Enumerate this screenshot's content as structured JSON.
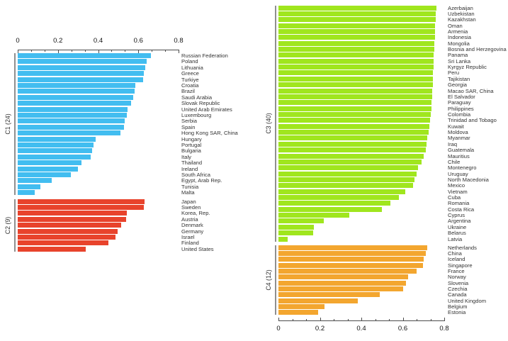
{
  "chart_data": [
    {
      "id": "left-panel",
      "type": "bar",
      "orientation": "horizontal",
      "value_axis": {
        "position": "top",
        "min": 0,
        "max": 0.8,
        "tick_values": [
          0,
          0.2,
          0.4,
          0.6,
          0.8
        ],
        "tick_labels": [
          "0",
          "0.2",
          "0.4",
          "0.6",
          "0.8"
        ],
        "grid": false
      },
      "groups": [
        {
          "label": "C1 (24)",
          "color": "#42BDF0",
          "items": [
            {
              "name": "Russian Federation",
              "value": 0.661
            },
            {
              "name": "Poland",
              "value": 0.643
            },
            {
              "name": "Lithuania",
              "value": 0.634
            },
            {
              "name": "Greece",
              "value": 0.629
            },
            {
              "name": "Turkiye",
              "value": 0.625
            },
            {
              "name": "Croatia",
              "value": 0.586
            },
            {
              "name": "Brazil",
              "value": 0.582
            },
            {
              "name": "Saudi Arabia",
              "value": 0.576
            },
            {
              "name": "Slovak Republic",
              "value": 0.563
            },
            {
              "name": "United Arab Emirates",
              "value": 0.546
            },
            {
              "name": "Luxembourg",
              "value": 0.543
            },
            {
              "name": "Serbia",
              "value": 0.532
            },
            {
              "name": "Spain",
              "value": 0.528
            },
            {
              "name": "Hong Kong SAR, China",
              "value": 0.51
            },
            {
              "name": "Hungary",
              "value": 0.388
            },
            {
              "name": "Portugal",
              "value": 0.378
            },
            {
              "name": "Bulgaria",
              "value": 0.369
            },
            {
              "name": "Italy",
              "value": 0.364
            },
            {
              "name": "Thailand",
              "value": 0.317
            },
            {
              "name": "Ireland",
              "value": 0.3
            },
            {
              "name": "South Africa",
              "value": 0.264
            },
            {
              "name": "Egypt, Arab Rep.",
              "value": 0.168
            },
            {
              "name": "Tunisia",
              "value": 0.112
            },
            {
              "name": "Malta",
              "value": 0.086
            }
          ]
        },
        {
          "label": "C2 (9)",
          "color": "#E8432C",
          "items": [
            {
              "name": "Japan",
              "value": 0.632
            },
            {
              "name": "Sweden",
              "value": 0.629
            },
            {
              "name": "Korea, Rep.",
              "value": 0.543
            },
            {
              "name": "Austria",
              "value": 0.539
            },
            {
              "name": "Denmark",
              "value": 0.513
            },
            {
              "name": "Germany",
              "value": 0.496
            },
            {
              "name": "Israel",
              "value": 0.485
            },
            {
              "name": "Finland",
              "value": 0.452
            },
            {
              "name": "United States",
              "value": 0.337
            }
          ]
        }
      ]
    },
    {
      "id": "right-panel",
      "type": "bar",
      "orientation": "horizontal",
      "value_axis": {
        "position": "bottom",
        "min": 0,
        "max": 0.8,
        "tick_values": [
          0,
          0.2,
          0.4,
          0.6,
          0.8
        ],
        "tick_labels": [
          "0",
          "0.2",
          "0.4",
          "0.6",
          "0.8"
        ],
        "grid": false
      },
      "groups": [
        {
          "label": "C3 (40)",
          "color": "#A0E61E",
          "items": [
            {
              "name": "Azerbaijan",
              "value": 0.762
            },
            {
              "name": "Uzbekistan",
              "value": 0.76
            },
            {
              "name": "Kazakhstan",
              "value": 0.759
            },
            {
              "name": "Oman",
              "value": 0.757
            },
            {
              "name": "Armenia",
              "value": 0.756
            },
            {
              "name": "Indonesia",
              "value": 0.754
            },
            {
              "name": "Mongolia",
              "value": 0.753
            },
            {
              "name": "Bosnia and Herzegovina",
              "value": 0.751
            },
            {
              "name": "Panama",
              "value": 0.75
            },
            {
              "name": "Sri Lanka",
              "value": 0.749
            },
            {
              "name": "Kyrgyz Republic",
              "value": 0.748
            },
            {
              "name": "Peru",
              "value": 0.747
            },
            {
              "name": "Tajikistan",
              "value": 0.746
            },
            {
              "name": "Georgia",
              "value": 0.744
            },
            {
              "name": "Macao SAR, China",
              "value": 0.743
            },
            {
              "name": "El Salvador",
              "value": 0.741
            },
            {
              "name": "Paraguay",
              "value": 0.739
            },
            {
              "name": "Philippines",
              "value": 0.737
            },
            {
              "name": "Colombia",
              "value": 0.735
            },
            {
              "name": "Trinidad and Tobago",
              "value": 0.733
            },
            {
              "name": "Kuwait",
              "value": 0.729
            },
            {
              "name": "Moldova",
              "value": 0.724
            },
            {
              "name": "Myanmar",
              "value": 0.719
            },
            {
              "name": "Iraq",
              "value": 0.714
            },
            {
              "name": "Guatemala",
              "value": 0.71
            },
            {
              "name": "Mauritius",
              "value": 0.701
            },
            {
              "name": "Chile",
              "value": 0.69
            },
            {
              "name": "Montenegro",
              "value": 0.675
            },
            {
              "name": "Uruguay",
              "value": 0.666
            },
            {
              "name": "North Macedonia",
              "value": 0.657
            },
            {
              "name": "Mexico",
              "value": 0.649
            },
            {
              "name": "Vietnam",
              "value": 0.611
            },
            {
              "name": "Cuba",
              "value": 0.582
            },
            {
              "name": "Romania",
              "value": 0.541
            },
            {
              "name": "Costa Rica",
              "value": 0.499
            },
            {
              "name": "Cyprus",
              "value": 0.341
            },
            {
              "name": "Argentina",
              "value": 0.22
            },
            {
              "name": "Ukraine",
              "value": 0.172
            },
            {
              "name": "Belarus",
              "value": 0.168
            },
            {
              "name": "Latvia",
              "value": 0.045
            }
          ]
        },
        {
          "label": "C4 (12)",
          "color": "#F3A62F",
          "items": [
            {
              "name": "Netherlands",
              "value": 0.717
            },
            {
              "name": "China",
              "value": 0.712
            },
            {
              "name": "Iceland",
              "value": 0.7
            },
            {
              "name": "Singapore",
              "value": 0.696
            },
            {
              "name": "France",
              "value": 0.668
            },
            {
              "name": "Norway",
              "value": 0.627
            },
            {
              "name": "Slovenia",
              "value": 0.617
            },
            {
              "name": "Czechia",
              "value": 0.6
            },
            {
              "name": "Canada",
              "value": 0.488
            },
            {
              "name": "United Kingdom",
              "value": 0.384
            },
            {
              "name": "Belgium",
              "value": 0.223
            },
            {
              "name": "Estonia",
              "value": 0.191
            }
          ]
        }
      ]
    }
  ]
}
